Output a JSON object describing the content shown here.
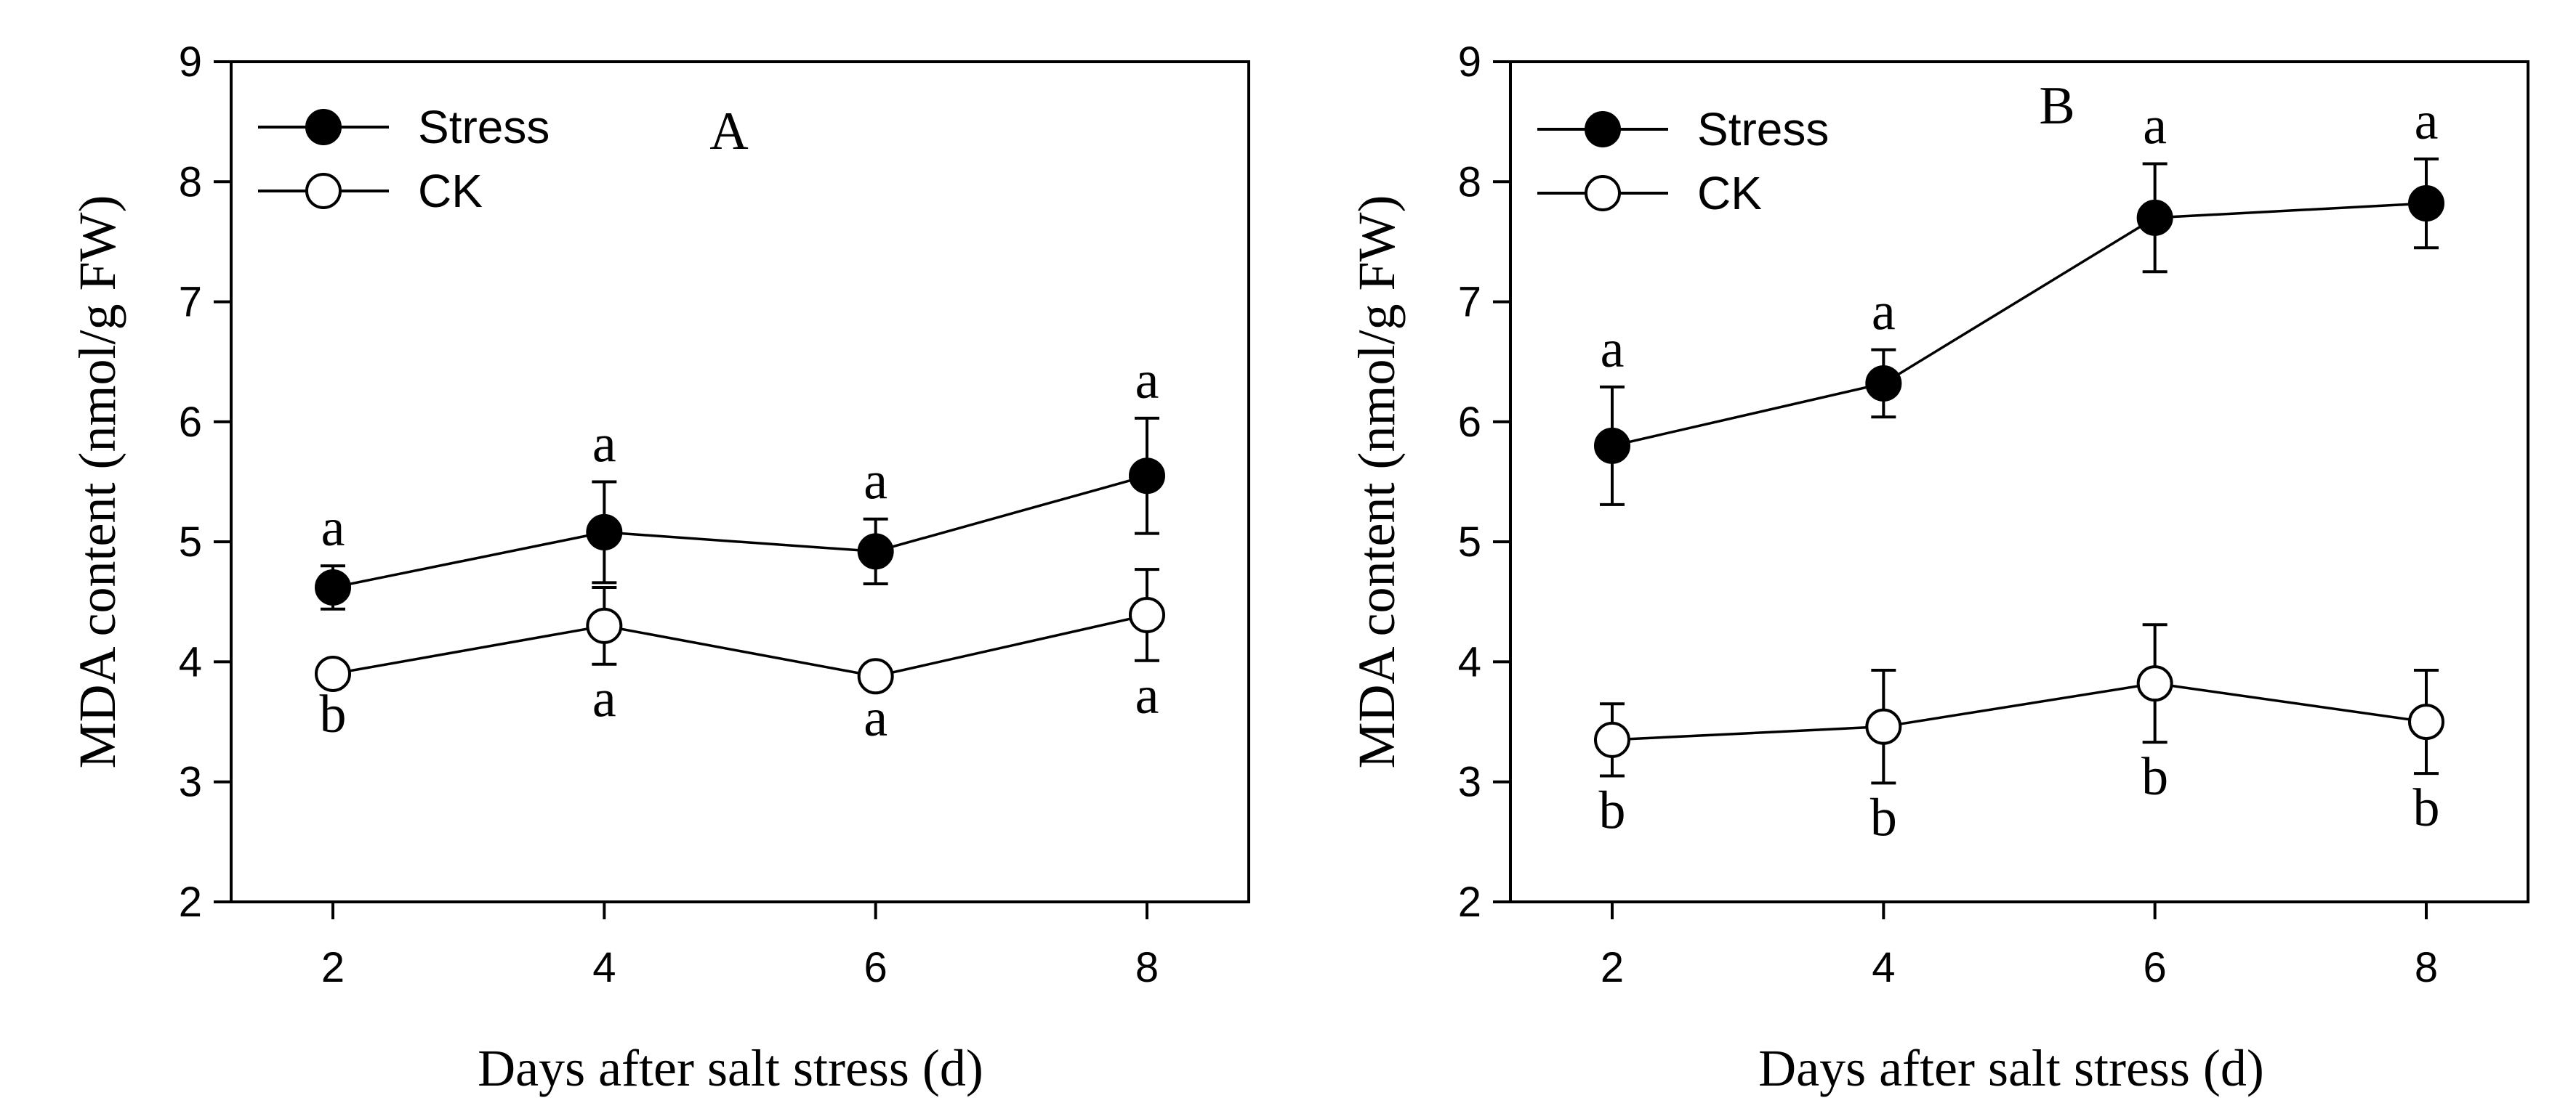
{
  "chart_data": [
    {
      "type": "line",
      "panel_label": "A",
      "x": [
        2,
        4,
        6,
        8
      ],
      "xlabel": "Days after salt stress (d)",
      "ylabel": "MDA content  (nmol/g FW)",
      "xlim": [
        1.25,
        8.75
      ],
      "ylim": [
        2,
        9
      ],
      "xticks": [
        2,
        4,
        6,
        8
      ],
      "yticks": [
        2,
        3,
        4,
        5,
        6,
        7,
        8,
        9
      ],
      "grid": false,
      "legend_position": "top-left",
      "series": [
        {
          "name": "Stress",
          "marker": "filled-circle",
          "values": [
            4.62,
            5.08,
            4.92,
            5.55
          ],
          "errors": [
            0.18,
            0.42,
            0.27,
            0.48
          ],
          "letters": [
            "a",
            "a",
            "a",
            "a"
          ],
          "letter_position": "above"
        },
        {
          "name": "CK",
          "marker": "open-circle",
          "values": [
            3.9,
            4.3,
            3.88,
            4.39
          ],
          "errors": [
            0.05,
            0.32,
            0.06,
            0.38
          ],
          "letters": [
            "b",
            "a",
            "a",
            "a"
          ],
          "letter_position": "below"
        }
      ]
    },
    {
      "type": "line",
      "panel_label": "B",
      "x": [
        2,
        4,
        6,
        8
      ],
      "xlabel": "Days after salt stress (d)",
      "ylabel": "MDA content  (nmol/g FW)",
      "xlim": [
        1.25,
        8.75
      ],
      "ylim": [
        2,
        9
      ],
      "xticks": [
        2,
        4,
        6,
        8
      ],
      "yticks": [
        2,
        3,
        4,
        5,
        6,
        7,
        8,
        9
      ],
      "grid": false,
      "legend_position": "top-left",
      "series": [
        {
          "name": "Stress",
          "marker": "filled-circle",
          "values": [
            5.8,
            6.32,
            7.7,
            7.82
          ],
          "errors": [
            0.49,
            0.28,
            0.45,
            0.37
          ],
          "letters": [
            "a",
            "a",
            "a",
            "a"
          ],
          "letter_position": "above"
        },
        {
          "name": "CK",
          "marker": "open-circle",
          "values": [
            3.35,
            3.46,
            3.82,
            3.5
          ],
          "errors": [
            0.3,
            0.47,
            0.49,
            0.43
          ],
          "letters": [
            "b",
            "b",
            "b",
            "b"
          ],
          "letter_position": "below"
        }
      ]
    }
  ]
}
